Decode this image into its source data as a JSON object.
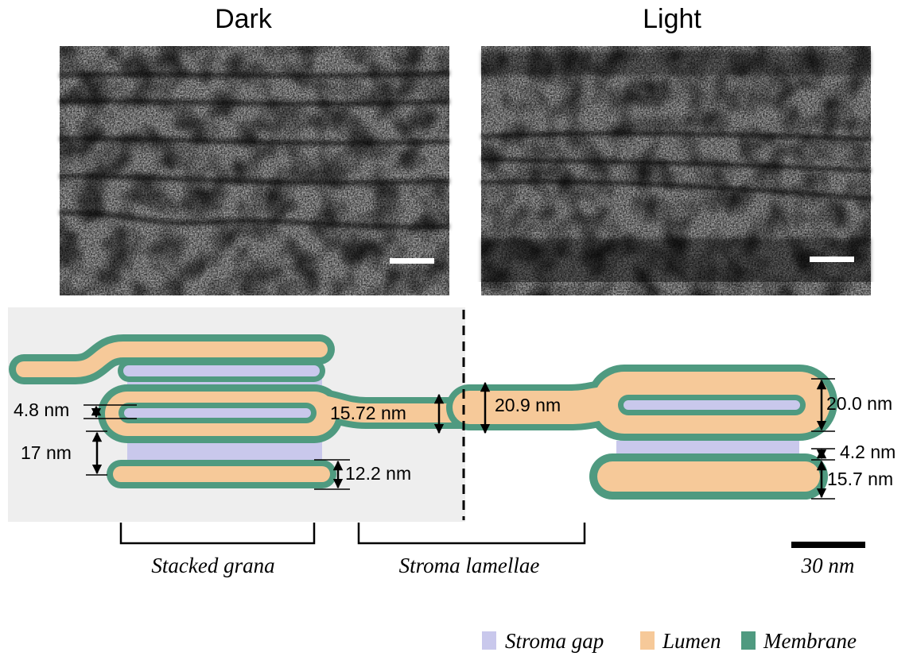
{
  "panels": [
    {
      "title": "Dark"
    },
    {
      "title": "Light"
    }
  ],
  "measurements": [
    "4.8 nm",
    "17 nm",
    "15.72 nm",
    "12.2 nm",
    "20.9 nm",
    "20.0 nm",
    "4.2 nm",
    "15.7 nm"
  ],
  "regions": [
    "Stacked grana",
    "Stroma lamellae"
  ],
  "scale_bar": "30 nm",
  "legend": [
    "Stroma gap",
    "Lumen",
    "Membrane"
  ]
}
